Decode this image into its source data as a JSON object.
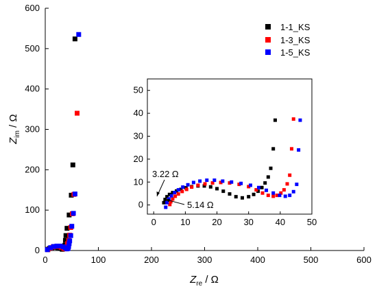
{
  "chart_data": [
    {
      "type": "scatter",
      "role": "main",
      "xlabel_main": "Z",
      "xlabel_sub": "re",
      "xlabel_unit": " / Ω",
      "ylabel_main": "Z",
      "ylabel_sub": "im",
      "ylabel_unit": " / Ω",
      "xlim": [
        0,
        600
      ],
      "ylim": [
        0,
        600
      ],
      "xticks": [
        0,
        100,
        200,
        300,
        400,
        500,
        600
      ],
      "yticks": [
        0,
        100,
        200,
        300,
        400,
        500,
        600
      ],
      "legend_position": "top-right",
      "series": [
        {
          "name": "1-1_KS",
          "color": "#000000",
          "x": [
            4,
            8,
            12,
            16,
            20,
            24,
            28,
            32,
            35,
            37,
            38,
            39,
            41,
            45,
            49,
            52,
            56
          ],
          "y": [
            3,
            5,
            7,
            8,
            8,
            7,
            5,
            3,
            6,
            13,
            25,
            37,
            55,
            88,
            137,
            212,
            524
          ]
        },
        {
          "name": "1-3_KS",
          "color": "#ff0000",
          "x": [
            5,
            10,
            15,
            20,
            25,
            30,
            35,
            38,
            40,
            41,
            42,
            44,
            46,
            48,
            51,
            54,
            60
          ],
          "y": [
            2,
            6,
            9,
            10,
            10,
            8,
            5,
            4,
            6,
            10,
            17,
            25,
            38,
            57,
            91,
            139,
            340
          ]
        },
        {
          "name": "1-5_KS",
          "color": "#0000ff",
          "x": [
            4,
            10,
            16,
            22,
            28,
            34,
            38,
            41,
            43,
            44,
            45,
            46,
            48,
            50,
            53,
            56,
            63
          ],
          "y": [
            2,
            7,
            10,
            11,
            11,
            9,
            6,
            4,
            5,
            10,
            17,
            24,
            37,
            60,
            92,
            140,
            535
          ]
        }
      ]
    },
    {
      "type": "scatter",
      "role": "inset",
      "xlim": [
        -2,
        50
      ],
      "ylim": [
        -4,
        55
      ],
      "xticks": [
        0,
        10,
        20,
        30,
        40,
        50
      ],
      "yticks": [
        0,
        10,
        20,
        30,
        40,
        50
      ],
      "annotations": [
        {
          "text": "3.22 Ω",
          "x": 3.22,
          "y": 1,
          "label_pos": "upper-left"
        },
        {
          "text": "5.14 Ω",
          "x": 5.14,
          "y": 0,
          "label_pos": "lower-right"
        }
      ],
      "series": [
        {
          "name": "1-1_KS",
          "color": "#000000",
          "x": [
            3.2,
            3.6,
            4.2,
            5.0,
            6.0,
            7.2,
            8.6,
            10.2,
            12.0,
            14.0,
            16.0,
            18.0,
            20.0,
            22.0,
            24.0,
            26.0,
            28.0,
            30.0,
            31.6,
            33.0,
            34.2,
            35.2,
            36.2,
            37.0,
            37.8,
            38.4
          ],
          "y": [
            1.0,
            2.4,
            3.6,
            4.6,
            5.4,
            6.1,
            6.8,
            7.5,
            8.0,
            8.3,
            8.3,
            7.9,
            7.1,
            6.0,
            4.8,
            3.6,
            3.1,
            3.6,
            4.6,
            6.0,
            7.6,
            9.6,
            12.2,
            16.0,
            24.5,
            37.0
          ]
        },
        {
          "name": "1-3_KS",
          "color": "#ff0000",
          "x": [
            5.1,
            5.4,
            6.0,
            6.8,
            7.8,
            9.0,
            10.4,
            12.0,
            14.0,
            16.2,
            18.6,
            21.2,
            24.0,
            27.0,
            30.0,
            32.4,
            34.4,
            36.2,
            37.8,
            39.0,
            40.2,
            41.2,
            42.2,
            43.0,
            43.6,
            44.2
          ],
          "y": [
            0.2,
            1.4,
            2.6,
            3.8,
            4.8,
            5.9,
            6.8,
            7.8,
            8.6,
            9.2,
            9.6,
            9.8,
            9.6,
            9.0,
            8.0,
            6.6,
            5.2,
            4.2,
            3.8,
            4.2,
            5.2,
            6.6,
            9.2,
            13.0,
            24.5,
            37.5
          ]
        },
        {
          "name": "1-5_KS",
          "color": "#0000ff",
          "x": [
            3.8,
            4.2,
            4.8,
            5.6,
            6.6,
            7.8,
            9.2,
            10.8,
            12.6,
            14.6,
            16.8,
            19.2,
            21.8,
            24.6,
            27.6,
            30.6,
            33.2,
            35.6,
            37.8,
            39.8,
            41.6,
            43.0,
            44.2,
            45.2,
            45.8,
            46.3
          ],
          "y": [
            -1.0,
            1.0,
            2.6,
            4.0,
            5.4,
            6.6,
            7.8,
            8.8,
            9.8,
            10.4,
            10.8,
            10.8,
            10.4,
            10.0,
            9.4,
            8.6,
            7.6,
            6.4,
            5.2,
            4.2,
            3.8,
            4.2,
            5.8,
            9.0,
            24.0,
            37.0
          ]
        }
      ]
    }
  ]
}
